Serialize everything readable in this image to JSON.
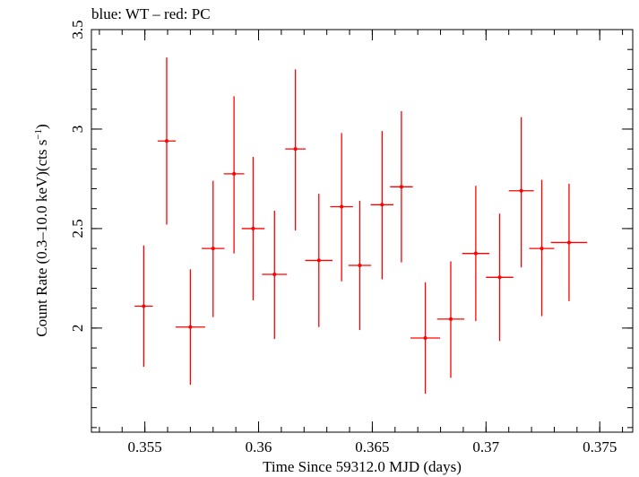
{
  "chart_data": {
    "type": "scatter",
    "title": "blue: WT – red: PC",
    "xlabel": "Time Since 59312.0 MJD (days)",
    "ylabel_main": "Count Rate (0.3–10.0 keV)(cts s",
    "ylabel_sup": "−1",
    "ylabel_end": ")",
    "xlim": [
      0.35265,
      0.37645
    ],
    "ylim": [
      1.4768,
      3.5
    ],
    "x_ticks": [
      0.355,
      0.36,
      0.365,
      0.37,
      0.375
    ],
    "x_tick_labels": [
      "0.355",
      "0.36",
      "0.365",
      "0.37",
      "0.375"
    ],
    "x_minor_step": 0.001,
    "y_ticks": [
      2,
      2.5,
      3,
      3.5
    ],
    "y_tick_labels": [
      "2",
      "2.5",
      "3",
      "3.5"
    ],
    "y_minor_step": 0.1,
    "grid": false,
    "legend": "none",
    "series": [
      {
        "color": "#ff0000",
        "points": [
          {
            "x": 0.35495,
            "xerr": 0.0004,
            "y": 2.11,
            "ylo": 1.805,
            "yhi": 2.415
          },
          {
            "x": 0.35596,
            "xerr": 0.0004,
            "y": 2.94,
            "ylo": 2.52,
            "yhi": 3.36
          },
          {
            "x": 0.357,
            "xerr": 0.00065,
            "y": 2.005,
            "ylo": 1.715,
            "yhi": 2.295
          },
          {
            "x": 0.358,
            "xerr": 0.0005,
            "y": 2.4,
            "ylo": 2.055,
            "yhi": 2.74
          },
          {
            "x": 0.35892,
            "xerr": 0.00045,
            "y": 2.775,
            "ylo": 2.375,
            "yhi": 3.165
          },
          {
            "x": 0.35976,
            "xerr": 0.0005,
            "y": 2.5,
            "ylo": 2.14,
            "yhi": 2.86
          },
          {
            "x": 0.3607,
            "xerr": 0.00055,
            "y": 2.27,
            "ylo": 1.945,
            "yhi": 2.59
          },
          {
            "x": 0.36162,
            "xerr": 0.00045,
            "y": 2.9,
            "ylo": 2.49,
            "yhi": 3.3
          },
          {
            "x": 0.36265,
            "xerr": 0.0006,
            "y": 2.34,
            "ylo": 2.005,
            "yhi": 2.675
          },
          {
            "x": 0.36365,
            "xerr": 0.0005,
            "y": 2.61,
            "ylo": 2.235,
            "yhi": 2.98
          },
          {
            "x": 0.36445,
            "xerr": 0.0005,
            "y": 2.315,
            "ylo": 1.99,
            "yhi": 2.64
          },
          {
            "x": 0.36543,
            "xerr": 0.0005,
            "y": 2.62,
            "ylo": 2.245,
            "yhi": 2.99
          },
          {
            "x": 0.36628,
            "xerr": 0.0005,
            "y": 2.71,
            "ylo": 2.33,
            "yhi": 3.09
          },
          {
            "x": 0.36733,
            "xerr": 0.00065,
            "y": 1.95,
            "ylo": 1.67,
            "yhi": 2.23
          },
          {
            "x": 0.36845,
            "xerr": 0.0006,
            "y": 2.045,
            "ylo": 1.75,
            "yhi": 2.335
          },
          {
            "x": 0.36955,
            "xerr": 0.0006,
            "y": 2.375,
            "ylo": 2.035,
            "yhi": 2.715
          },
          {
            "x": 0.3706,
            "xerr": 0.0006,
            "y": 2.255,
            "ylo": 1.935,
            "yhi": 2.575
          },
          {
            "x": 0.37155,
            "xerr": 0.00055,
            "y": 2.69,
            "ylo": 2.305,
            "yhi": 3.06
          },
          {
            "x": 0.37245,
            "xerr": 0.00055,
            "y": 2.4,
            "ylo": 2.06,
            "yhi": 2.745
          },
          {
            "x": 0.37365,
            "xerr": 0.0008,
            "y": 2.43,
            "ylo": 2.135,
            "yhi": 2.725
          }
        ]
      }
    ]
  }
}
